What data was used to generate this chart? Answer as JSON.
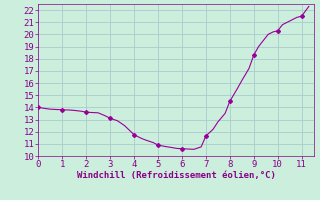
{
  "x": [
    0,
    0.3,
    0.5,
    0.8,
    1.0,
    1.3,
    1.5,
    1.8,
    2.0,
    2.3,
    2.5,
    2.8,
    3.0,
    3.3,
    3.6,
    4.0,
    4.3,
    4.5,
    4.8,
    5.0,
    5.3,
    5.5,
    5.8,
    6.0,
    6.3,
    6.5,
    6.8,
    7.0,
    7.3,
    7.5,
    7.8,
    8.0,
    8.3,
    8.5,
    8.8,
    9.0,
    9.2,
    9.4,
    9.6,
    9.8,
    10.0,
    10.2,
    10.4,
    10.6,
    10.8,
    11.0,
    11.3
  ],
  "y": [
    14.0,
    13.9,
    13.85,
    13.82,
    13.8,
    13.78,
    13.75,
    13.68,
    13.6,
    13.57,
    13.55,
    13.3,
    13.1,
    12.9,
    12.5,
    11.75,
    11.45,
    11.3,
    11.1,
    10.9,
    10.78,
    10.72,
    10.62,
    10.6,
    10.57,
    10.55,
    10.75,
    11.65,
    12.2,
    12.8,
    13.5,
    14.5,
    15.5,
    16.2,
    17.2,
    18.3,
    19.0,
    19.5,
    20.0,
    20.2,
    20.3,
    20.8,
    21.0,
    21.2,
    21.4,
    21.5,
    22.3
  ],
  "marker_x": [
    0,
    1,
    2,
    3,
    4,
    5,
    6,
    7,
    8,
    9,
    10,
    11
  ],
  "marker_y": [
    14.0,
    13.8,
    13.6,
    13.1,
    11.75,
    10.9,
    10.6,
    11.65,
    14.5,
    18.3,
    20.3,
    21.5
  ],
  "line_color": "#990099",
  "marker_color": "#990099",
  "bg_color": "#cceedd",
  "grid_color": "#aacccc",
  "xlabel": "Windchill (Refroidissement éolien,°C)",
  "xlim": [
    0,
    11.5
  ],
  "ylim": [
    10,
    22.5
  ],
  "xticks": [
    0,
    1,
    2,
    3,
    4,
    5,
    6,
    7,
    8,
    9,
    10,
    11
  ],
  "yticks": [
    10,
    11,
    12,
    13,
    14,
    15,
    16,
    17,
    18,
    19,
    20,
    21,
    22
  ],
  "xlabel_fontsize": 6.5,
  "tick_fontsize": 6.5,
  "label_color": "#880088"
}
